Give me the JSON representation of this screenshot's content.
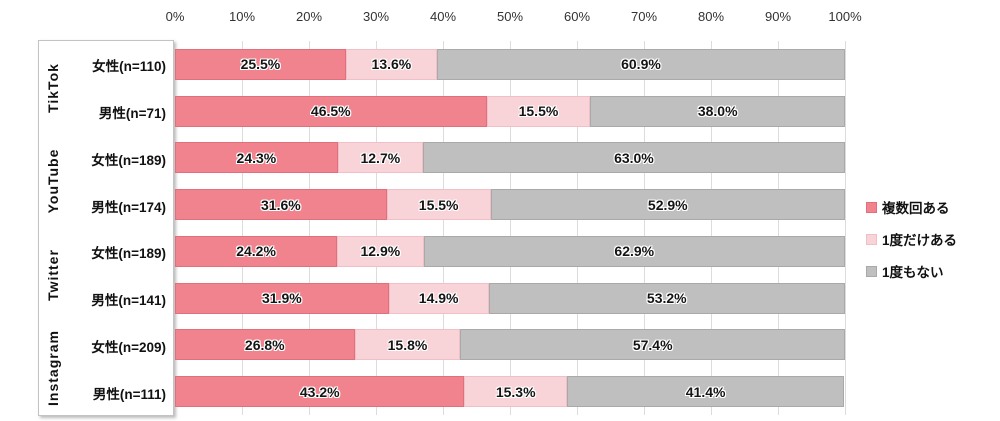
{
  "chart_data": {
    "type": "bar",
    "orientation": "horizontal",
    "stacked": true,
    "title": "",
    "xlabel": "",
    "ylabel": "",
    "xlim": [
      0,
      100
    ],
    "grid": true,
    "legend_position": "right",
    "value_suffix": "%",
    "x_ticks": [
      "0%",
      "10%",
      "20%",
      "30%",
      "40%",
      "50%",
      "60%",
      "70%",
      "80%",
      "90%",
      "100%"
    ],
    "series": [
      {
        "name": "複数回ある",
        "color": "#F0838D",
        "border_color": "#E2707C"
      },
      {
        "name": "1度だけある",
        "color": "#F8D3D8",
        "border_color": "#F0BFC7"
      },
      {
        "name": "1度もない",
        "color": "#BFBFBF",
        "border_color": "#A9A9A9"
      }
    ],
    "groups": [
      {
        "label": "TikTok",
        "rows": [
          {
            "label": "女性(n=110)",
            "values": [
              25.5,
              13.6,
              60.9
            ]
          },
          {
            "label": "男性(n=71)",
            "values": [
              46.5,
              15.5,
              38.0
            ]
          }
        ]
      },
      {
        "label": "YouTube",
        "rows": [
          {
            "label": "女性(n=189)",
            "values": [
              24.3,
              12.7,
              63.0
            ]
          },
          {
            "label": "男性(n=174)",
            "values": [
              31.6,
              15.5,
              52.9
            ]
          }
        ]
      },
      {
        "label": "Twitter",
        "rows": [
          {
            "label": "女性(n=189)",
            "values": [
              24.2,
              12.9,
              62.9
            ]
          },
          {
            "label": "男性(n=141)",
            "values": [
              31.9,
              14.9,
              53.2
            ]
          }
        ]
      },
      {
        "label": "Instagram",
        "rows": [
          {
            "label": "女性(n=209)",
            "values": [
              26.8,
              15.8,
              57.4
            ]
          },
          {
            "label": "男性(n=111)",
            "values": [
              43.2,
              15.3,
              41.4
            ]
          }
        ]
      }
    ]
  }
}
